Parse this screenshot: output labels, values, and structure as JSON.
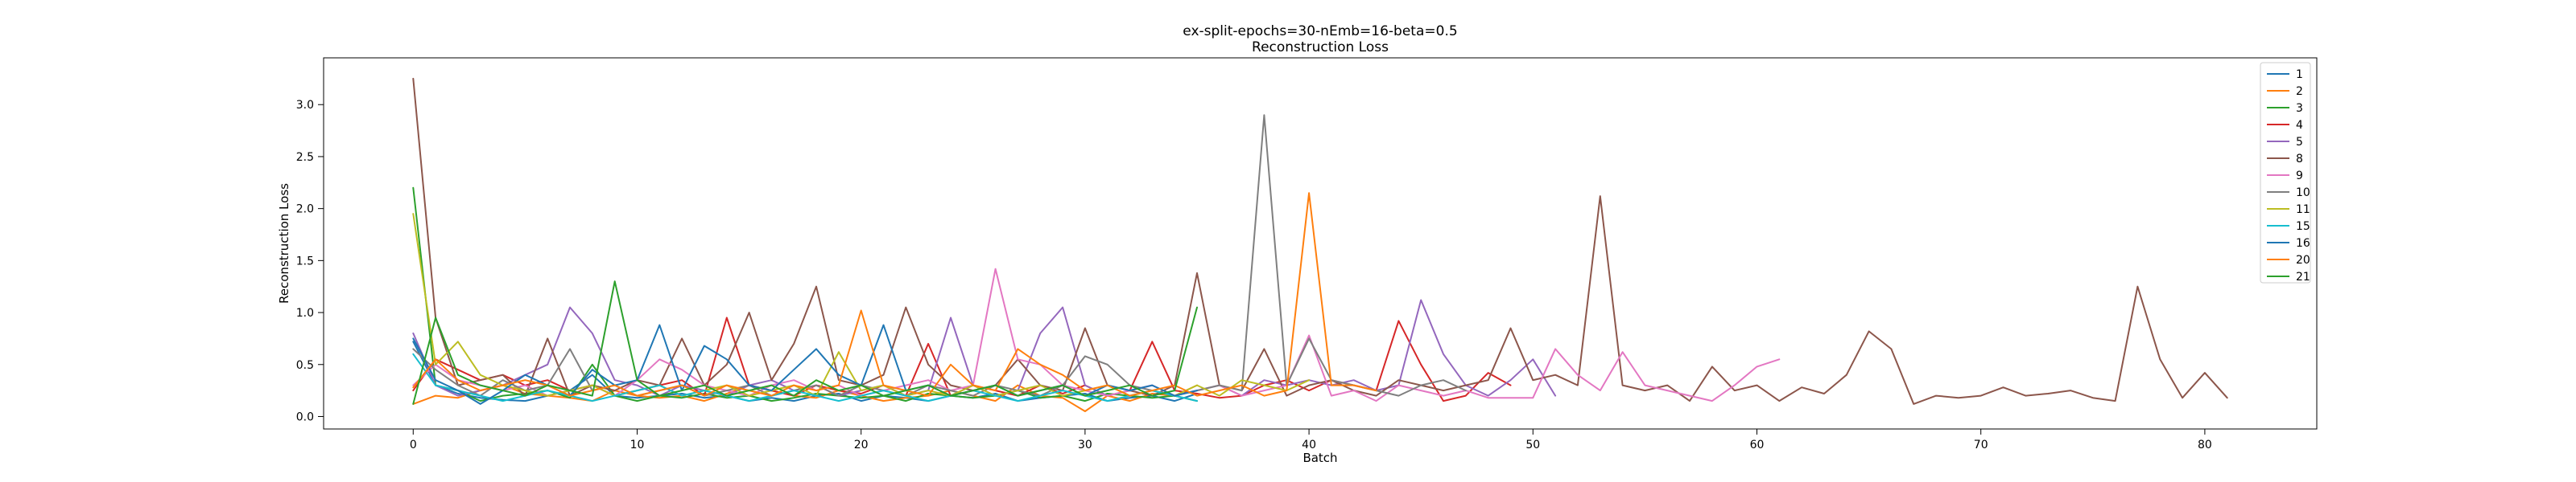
{
  "chart_data": {
    "type": "line",
    "title": "ex-split-epochs=30-nEmb=16-beta=0.5",
    "subtitle": "Reconstruction Loss",
    "xlabel": "Batch",
    "ylabel": "Reconstruction Loss",
    "xlim": [
      -4,
      85
    ],
    "ylim": [
      -0.12,
      3.45
    ],
    "xticks": [
      0,
      10,
      20,
      30,
      40,
      50,
      60,
      70,
      80
    ],
    "yticks": [
      0.0,
      0.5,
      1.0,
      1.5,
      2.0,
      2.5,
      3.0
    ],
    "ytick_labels": [
      "0.0",
      "0.5",
      "1.0",
      "1.5",
      "2.0",
      "2.5",
      "3.0"
    ],
    "grid": false,
    "legend_position": "top-right",
    "series": [
      {
        "name": "1",
        "color": "#1f77b4",
        "start": 0,
        "values": [
          0.72,
          0.3,
          0.22,
          0.18,
          0.16,
          0.15,
          0.2,
          0.25,
          0.4,
          0.2,
          0.18,
          0.2,
          0.22,
          0.18,
          0.2,
          0.15,
          0.18,
          0.15,
          0.2,
          0.22,
          0.15,
          0.2,
          0.18,
          0.15,
          0.2,
          0.18,
          0.22,
          0.15,
          0.18,
          0.2,
          0.22,
          0.15,
          0.18,
          0.2,
          0.15,
          0.22
        ]
      },
      {
        "name": "2",
        "color": "#ff7f0e",
        "start": 0,
        "values": [
          0.12,
          0.2,
          0.18,
          0.25,
          0.3,
          0.22,
          0.2,
          0.18,
          0.15,
          0.25,
          0.2,
          0.18,
          0.2,
          0.15,
          0.22,
          0.3,
          0.25,
          0.2,
          0.18,
          0.25,
          0.2,
          0.15,
          0.18,
          0.2,
          0.25,
          0.2,
          0.15,
          0.3,
          0.2,
          0.18,
          0.05,
          0.2,
          0.15,
          0.22,
          0.2,
          0.3
        ]
      },
      {
        "name": "3",
        "color": "#2ca02c",
        "start": 0,
        "values": [
          2.2,
          0.3,
          0.25,
          0.15,
          0.2,
          0.22,
          0.25,
          0.18,
          0.5,
          0.2,
          0.15,
          0.2,
          0.18,
          0.22,
          0.18,
          0.2,
          0.15,
          0.18,
          0.22,
          0.2,
          0.18,
          0.2,
          0.15,
          0.22,
          0.2,
          0.18,
          0.2,
          0.25,
          0.18,
          0.2,
          0.15,
          0.22,
          0.2,
          0.18,
          0.2,
          0.15
        ]
      },
      {
        "name": "4",
        "color": "#d62728",
        "start": 0,
        "values": [
          0.25,
          0.55,
          0.45,
          0.35,
          0.4,
          0.3,
          0.35,
          0.25,
          0.3,
          0.2,
          0.25,
          0.3,
          0.35,
          0.2,
          0.95,
          0.3,
          0.25,
          0.2,
          0.3,
          0.25,
          0.22,
          0.3,
          0.2,
          0.7,
          0.2,
          0.3,
          0.25,
          0.2,
          0.3,
          0.22,
          0.3,
          0.2,
          0.25,
          0.72,
          0.25,
          0.22,
          0.18,
          0.2,
          0.3,
          0.35,
          0.25,
          0.35,
          0.3,
          0.25,
          0.92,
          0.5,
          0.15,
          0.2,
          0.42,
          0.3
        ]
      },
      {
        "name": "5",
        "color": "#9467bd",
        "start": 0,
        "values": [
          0.8,
          0.3,
          0.2,
          0.25,
          0.3,
          0.4,
          0.5,
          1.05,
          0.8,
          0.35,
          0.3,
          0.2,
          0.3,
          0.25,
          0.2,
          0.3,
          0.35,
          0.25,
          0.3,
          0.2,
          0.25,
          0.3,
          0.2,
          0.25,
          0.95,
          0.3,
          0.2,
          0.25,
          0.8,
          1.05,
          0.3,
          0.2,
          0.25,
          0.3,
          0.2,
          0.25,
          0.3,
          0.2,
          0.35,
          0.3,
          0.35,
          0.3,
          0.35,
          0.25,
          0.3,
          1.12,
          0.6,
          0.3,
          0.2,
          0.35,
          0.55,
          0.2
        ]
      },
      {
        "name": "8",
        "color": "#8c564b",
        "start": 0,
        "values": [
          3.25,
          0.95,
          0.3,
          0.35,
          0.4,
          0.2,
          0.75,
          0.2,
          0.3,
          0.25,
          0.35,
          0.3,
          0.75,
          0.3,
          0.5,
          1.0,
          0.35,
          0.7,
          1.25,
          0.35,
          0.3,
          0.4,
          1.05,
          0.5,
          0.3,
          0.25,
          0.3,
          0.55,
          0.3,
          0.25,
          0.85,
          0.3,
          0.25,
          0.2,
          0.3,
          1.38,
          0.3,
          0.25,
          0.65,
          0.2,
          0.3,
          0.35,
          0.25,
          0.2,
          0.35,
          0.3,
          0.25,
          0.3,
          0.35,
          0.85,
          0.35,
          0.4,
          0.3,
          2.12,
          0.3,
          0.25,
          0.3,
          0.15,
          0.48,
          0.25,
          0.3,
          0.15,
          0.28,
          0.22,
          0.4,
          0.82,
          0.65,
          0.12,
          0.2,
          0.18,
          0.2,
          0.28,
          0.2,
          0.22,
          0.25,
          0.18,
          0.15,
          1.25,
          0.55,
          0.18,
          0.42,
          0.18
        ]
      },
      {
        "name": "9",
        "color": "#e377c2",
        "start": 0,
        "values": [
          0.3,
          0.5,
          0.35,
          0.3,
          0.25,
          0.3,
          0.2,
          0.25,
          0.3,
          0.2,
          0.35,
          0.55,
          0.45,
          0.3,
          0.25,
          0.2,
          0.3,
          0.35,
          0.25,
          0.3,
          0.2,
          0.25,
          0.3,
          0.35,
          0.25,
          0.3,
          1.42,
          0.55,
          0.5,
          0.3,
          0.25,
          0.2,
          0.25,
          0.3,
          0.2,
          0.25,
          0.3,
          0.2,
          0.25,
          0.3,
          0.78,
          0.2,
          0.25,
          0.15,
          0.3,
          0.25,
          0.2,
          0.25,
          0.18,
          0.18,
          0.18,
          0.65,
          0.4,
          0.25,
          0.62,
          0.3,
          0.25,
          0.2,
          0.15,
          0.3,
          0.48,
          0.55
        ]
      },
      {
        "name": "10",
        "color": "#7f7f7f",
        "start": 0,
        "values": [
          0.65,
          0.45,
          0.3,
          0.2,
          0.35,
          0.25,
          0.3,
          0.65,
          0.25,
          0.3,
          0.2,
          0.25,
          0.3,
          0.2,
          0.25,
          0.3,
          0.2,
          0.25,
          0.3,
          0.2,
          0.3,
          0.25,
          0.2,
          0.3,
          0.25,
          0.2,
          0.3,
          0.25,
          0.2,
          0.3,
          0.58,
          0.5,
          0.3,
          0.25,
          0.2,
          0.25,
          0.3,
          0.25,
          2.9,
          0.3,
          0.75,
          0.35,
          0.3,
          0.25,
          0.2,
          0.3,
          0.35,
          0.25
        ]
      },
      {
        "name": "11",
        "color": "#bcbd22",
        "start": 0,
        "values": [
          1.95,
          0.5,
          0.72,
          0.4,
          0.3,
          0.25,
          0.2,
          0.25,
          0.3,
          0.2,
          0.25,
          0.3,
          0.2,
          0.25,
          0.3,
          0.2,
          0.25,
          0.3,
          0.2,
          0.62,
          0.25,
          0.3,
          0.2,
          0.25,
          0.2,
          0.3,
          0.2,
          0.25,
          0.3,
          0.2,
          0.25,
          0.3,
          0.2,
          0.25,
          0.2,
          0.3,
          0.2,
          0.35,
          0.3,
          0.25,
          0.35
        ]
      },
      {
        "name": "15",
        "color": "#17becf",
        "start": 0,
        "values": [
          0.6,
          0.3,
          0.25,
          0.2,
          0.15,
          0.2,
          0.25,
          0.2,
          0.15,
          0.2,
          0.25,
          0.3,
          0.2,
          0.25,
          0.2,
          0.15,
          0.2,
          0.25,
          0.2,
          0.15,
          0.2,
          0.25,
          0.2,
          0.15,
          0.2,
          0.25,
          0.2,
          0.15,
          0.2,
          0.25,
          0.2,
          0.15,
          0.2,
          0.25,
          0.2,
          0.15
        ]
      },
      {
        "name": "16",
        "color": "#1f77b4",
        "start": 0,
        "values": [
          0.75,
          0.35,
          0.25,
          0.12,
          0.25,
          0.4,
          0.3,
          0.2,
          0.45,
          0.3,
          0.35,
          0.88,
          0.25,
          0.68,
          0.55,
          0.3,
          0.25,
          0.45,
          0.65,
          0.4,
          0.3,
          0.88,
          0.25,
          0.3,
          0.2,
          0.25,
          0.3,
          0.2,
          0.25,
          0.3,
          0.2,
          0.3,
          0.25,
          0.3,
          0.2,
          0.25
        ]
      },
      {
        "name": "20",
        "color": "#ff7f0e",
        "start": 0,
        "values": [
          0.28,
          0.55,
          0.35,
          0.25,
          0.3,
          0.35,
          0.3,
          0.2,
          0.25,
          0.3,
          0.2,
          0.25,
          0.3,
          0.2,
          0.3,
          0.25,
          0.2,
          0.3,
          0.25,
          0.3,
          1.02,
          0.3,
          0.25,
          0.2,
          0.5,
          0.3,
          0.25,
          0.65,
          0.5,
          0.4,
          0.25,
          0.3,
          0.2,
          0.25,
          0.3,
          0.2,
          0.25,
          0.3,
          0.2,
          0.25,
          2.15,
          0.3,
          0.3,
          0.25
        ]
      },
      {
        "name": "21",
        "color": "#2ca02c",
        "start": 0,
        "values": [
          0.12,
          0.95,
          0.4,
          0.3,
          0.25,
          0.2,
          0.3,
          0.25,
          0.2,
          1.3,
          0.35,
          0.2,
          0.25,
          0.3,
          0.2,
          0.25,
          0.3,
          0.2,
          0.35,
          0.25,
          0.3,
          0.2,
          0.25,
          0.3,
          0.2,
          0.25,
          0.3,
          0.2,
          0.25,
          0.3,
          0.2,
          0.25,
          0.3,
          0.2,
          0.25,
          1.05
        ]
      }
    ]
  }
}
